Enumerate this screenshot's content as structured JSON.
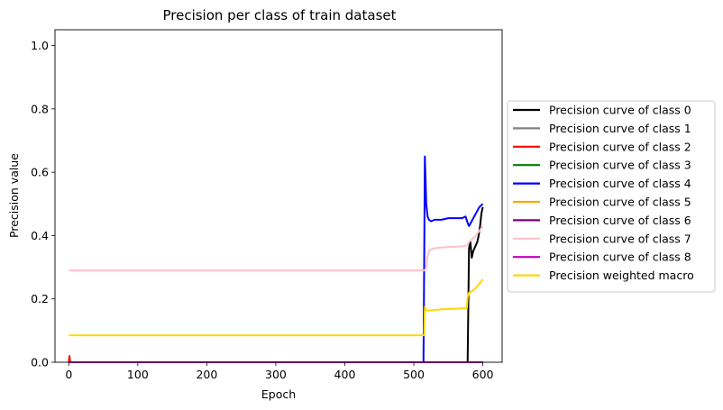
{
  "chart_data": {
    "type": "line",
    "title": "Precision per class of train dataset",
    "xlabel": "Epoch",
    "ylabel": "Precision value",
    "xlim": [
      -20,
      628
    ],
    "ylim": [
      0,
      1.05
    ],
    "xticks": [
      0,
      100,
      200,
      300,
      400,
      500,
      600
    ],
    "yticks": [
      0.0,
      0.2,
      0.4,
      0.6,
      0.8,
      1.0
    ],
    "xtick_labels": [
      "0",
      "100",
      "200",
      "300",
      "400",
      "500",
      "600"
    ],
    "ytick_labels": [
      "0.0",
      "0.2",
      "0.4",
      "0.6",
      "0.8",
      "1.0"
    ],
    "grid": false,
    "legend_position": "outside-right",
    "series": [
      {
        "name": "Precision curve of class 0",
        "color": "#000000",
        "x": [
          0,
          577,
          578,
          580,
          582,
          584,
          586,
          588,
          590,
          592,
          594,
          596,
          598,
          600
        ],
        "y": [
          0.0,
          0.0,
          0.0,
          0.36,
          0.38,
          0.33,
          0.35,
          0.36,
          0.37,
          0.38,
          0.4,
          0.43,
          0.47,
          0.49
        ]
      },
      {
        "name": "Precision curve of class 1",
        "color": "#808080",
        "x": [
          0,
          600
        ],
        "y": [
          0.0,
          0.0
        ]
      },
      {
        "name": "Precision curve of class 2",
        "color": "#ff0000",
        "x": [
          0,
          1,
          2,
          3,
          600
        ],
        "y": [
          0.0,
          0.02,
          0.0,
          0.0,
          0.0
        ]
      },
      {
        "name": "Precision curve of class 3",
        "color": "#008000",
        "x": [
          0,
          600
        ],
        "y": [
          0.0,
          0.0
        ]
      },
      {
        "name": "Precision curve of class 4",
        "color": "#0000ff",
        "x": [
          0,
          513,
          514,
          515,
          516,
          517,
          518,
          520,
          522,
          525,
          530,
          540,
          550,
          560,
          570,
          575,
          578,
          580,
          585,
          590,
          595,
          600
        ],
        "y": [
          0.0,
          0.0,
          0.0,
          0.3,
          0.65,
          0.58,
          0.5,
          0.46,
          0.45,
          0.445,
          0.45,
          0.45,
          0.455,
          0.455,
          0.455,
          0.46,
          0.44,
          0.43,
          0.45,
          0.47,
          0.49,
          0.5
        ]
      },
      {
        "name": "Precision curve of class 5",
        "color": "#ffa500",
        "x": [
          0,
          600
        ],
        "y": [
          0.0,
          0.0
        ]
      },
      {
        "name": "Precision curve of class 6",
        "color": "#800080",
        "x": [
          0,
          600
        ],
        "y": [
          0.0,
          0.0
        ]
      },
      {
        "name": "Precision curve of class 7",
        "color": "#ffc0cb",
        "x": [
          0,
          514,
          516,
          518,
          520,
          523,
          530,
          540,
          550,
          560,
          570,
          577,
          578,
          580,
          585,
          590,
          595,
          600
        ],
        "y": [
          0.29,
          0.29,
          0.29,
          0.3,
          0.335,
          0.355,
          0.36,
          0.362,
          0.364,
          0.365,
          0.366,
          0.368,
          0.37,
          0.38,
          0.39,
          0.4,
          0.415,
          0.43
        ]
      },
      {
        "name": "Precision curve of class 8",
        "color": "#bf00bf",
        "x": [
          0,
          600
        ],
        "y": [
          0.0,
          0.0
        ]
      },
      {
        "name": "Precision weighted macro",
        "color": "#ffd700",
        "x": [
          0,
          514,
          515,
          516,
          518,
          520,
          530,
          540,
          550,
          560,
          570,
          577,
          578,
          580,
          585,
          590,
          595,
          600
        ],
        "y": [
          0.085,
          0.085,
          0.085,
          0.175,
          0.165,
          0.163,
          0.165,
          0.167,
          0.168,
          0.169,
          0.17,
          0.171,
          0.205,
          0.22,
          0.225,
          0.235,
          0.248,
          0.262
        ]
      }
    ]
  }
}
